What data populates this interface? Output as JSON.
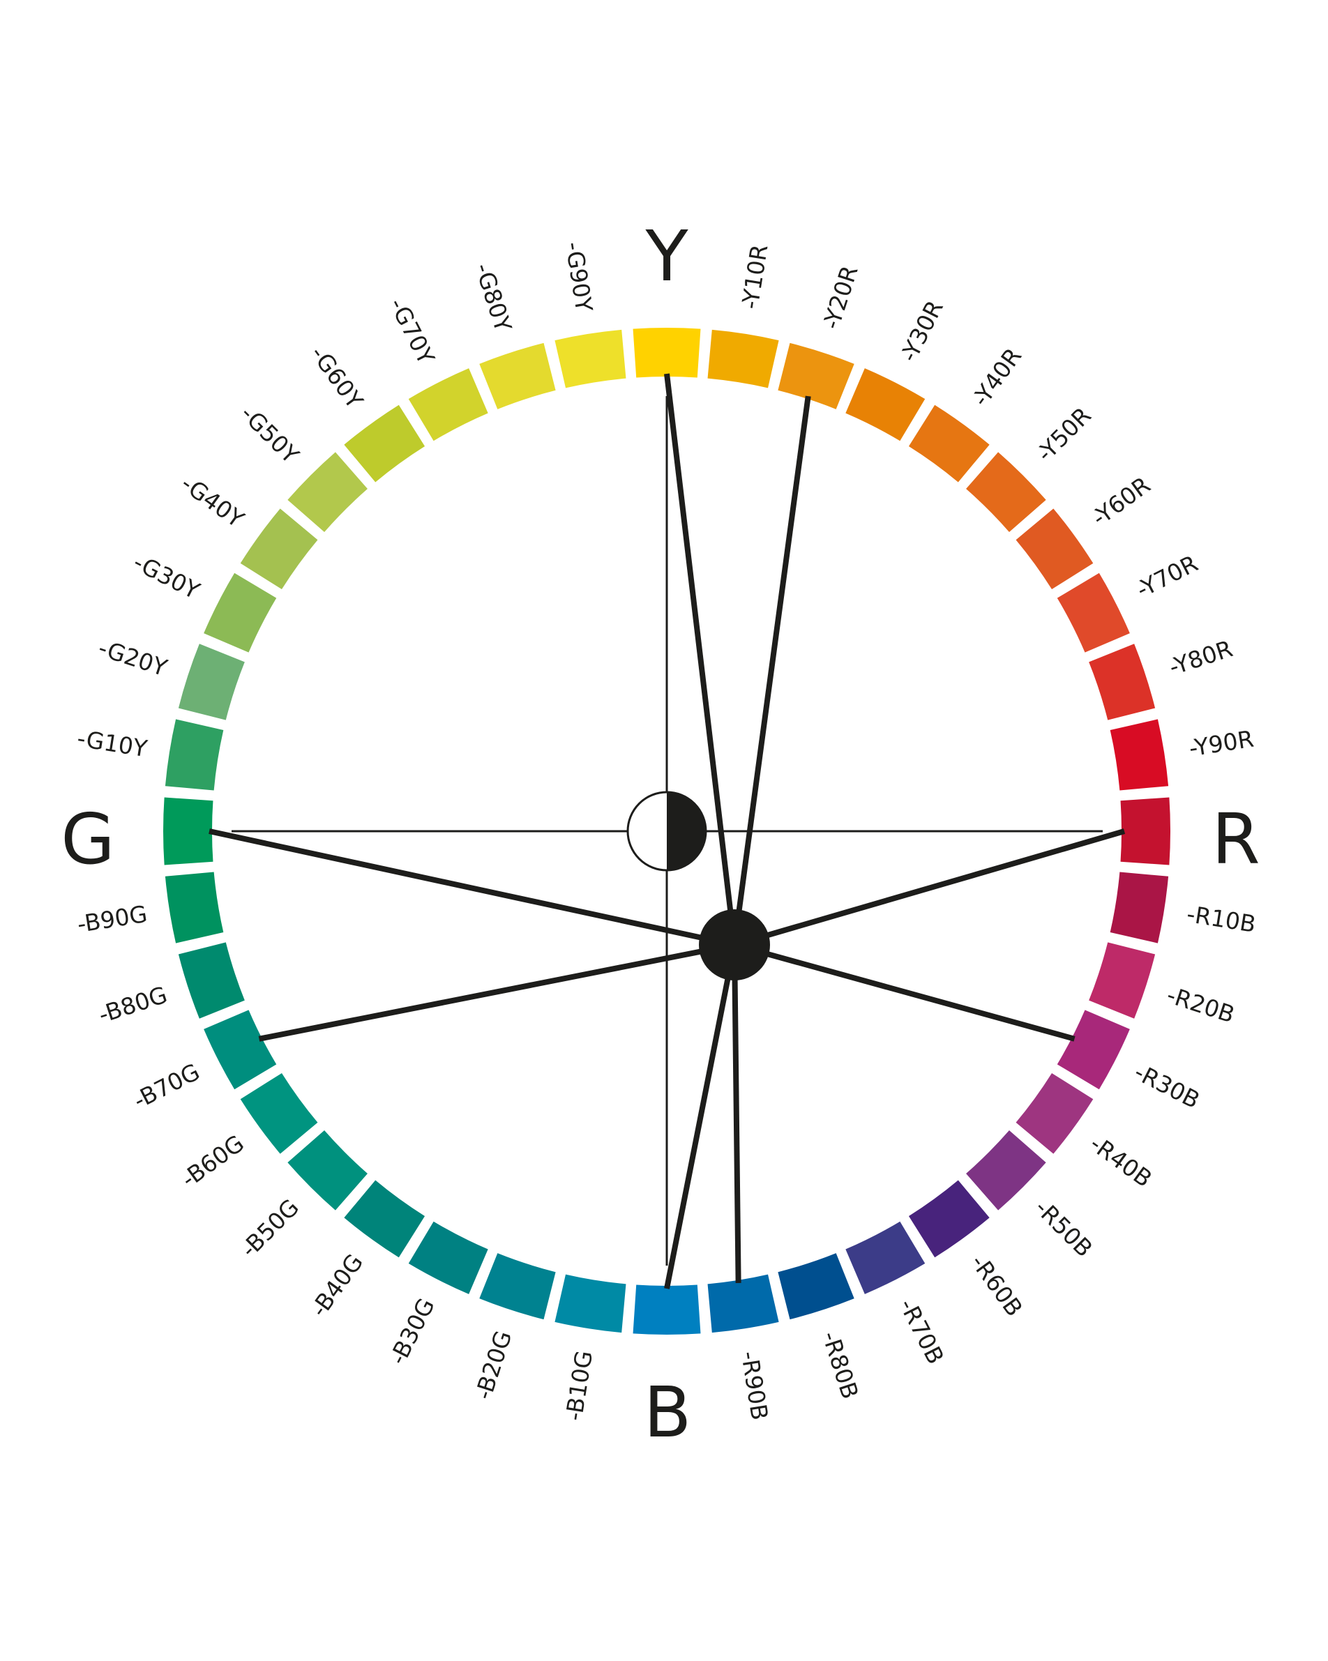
{
  "primaries": [
    "Y",
    "R",
    "B",
    "G"
  ],
  "hues": [
    {
      "label": "Y",
      "color": "#FFD200"
    },
    {
      "label": "-Y10R",
      "color": "#F0AA00"
    },
    {
      "label": "-Y20R",
      "color": "#EC940F"
    },
    {
      "label": "-Y30R",
      "color": "#E88205"
    },
    {
      "label": "-Y40R",
      "color": "#E67612"
    },
    {
      "label": "-Y50R",
      "color": "#E46A1A"
    },
    {
      "label": "-Y60R",
      "color": "#E05A22"
    },
    {
      "label": "-Y70R",
      "color": "#E04A2A"
    },
    {
      "label": "-Y80R",
      "color": "#DC3228"
    },
    {
      "label": "-Y90R",
      "color": "#D80C24"
    },
    {
      "label": "R",
      "color": "#C4122F"
    },
    {
      "label": "-R10B",
      "color": "#AA1546"
    },
    {
      "label": "-R20B",
      "color": "#BE2A68"
    },
    {
      "label": "-R30B",
      "color": "#A8287A"
    },
    {
      "label": "-R40B",
      "color": "#9E3580"
    },
    {
      "label": "-R50B",
      "color": "#7E3484"
    },
    {
      "label": "-R60B",
      "color": "#48237C"
    },
    {
      "label": "-R70B",
      "color": "#3C3C88"
    },
    {
      "label": "-R80B",
      "color": "#004F8F"
    },
    {
      "label": "-R90B",
      "color": "#006AAA"
    },
    {
      "label": "B",
      "color": "#0080C0"
    },
    {
      "label": "-B10G",
      "color": "#008AA5"
    },
    {
      "label": "-B20G",
      "color": "#008290"
    },
    {
      "label": "-B30G",
      "color": "#008182"
    },
    {
      "label": "-B40G",
      "color": "#00847A"
    },
    {
      "label": "-B50G",
      "color": "#00917E"
    },
    {
      "label": "-B60G",
      "color": "#009480"
    },
    {
      "label": "-B70G",
      "color": "#008E7E"
    },
    {
      "label": "-B80G",
      "color": "#008A6E"
    },
    {
      "label": "-B90G",
      "color": "#00925F"
    },
    {
      "label": "G",
      "color": "#009A5A"
    },
    {
      "label": "-G10Y",
      "color": "#2EA062"
    },
    {
      "label": "-G20Y",
      "color": "#6DB074"
    },
    {
      "label": "-G30Y",
      "color": "#8CBA55"
    },
    {
      "label": "-G40Y",
      "color": "#A4C150"
    },
    {
      "label": "-G50Y",
      "color": "#B2C84C"
    },
    {
      "label": "-G60Y",
      "color": "#BECB2C"
    },
    {
      "label": "-G70Y",
      "color": "#D2D32C"
    },
    {
      "label": "-G80Y",
      "color": "#E4DA2E"
    },
    {
      "label": "-G90Y",
      "color": "#EEE02A"
    }
  ],
  "highlighted_hues": [
    "Y",
    "-Y20R",
    "R",
    "-R30B",
    "-R90B",
    "B",
    "-B70G",
    "G"
  ],
  "line_color": "#1D1D1B"
}
